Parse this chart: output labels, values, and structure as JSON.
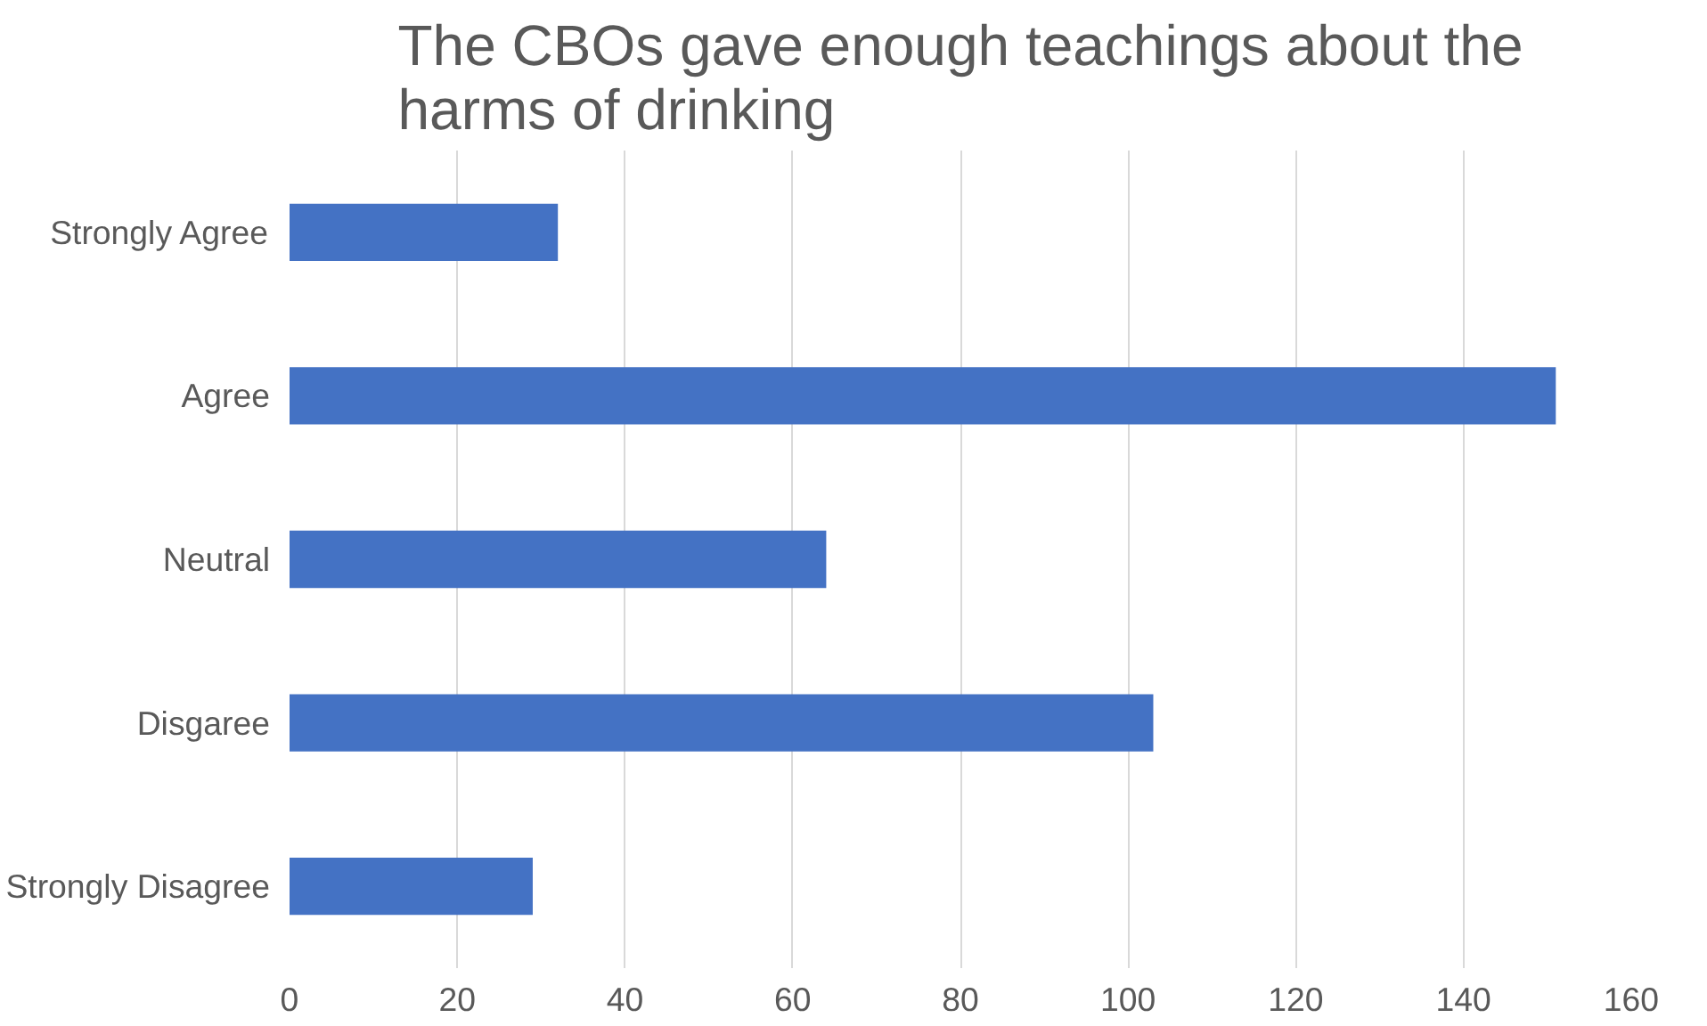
{
  "chart_data": {
    "type": "bar",
    "orientation": "horizontal",
    "title": "The CBOs gave enough teachings about the\nharms of drinking",
    "categories": [
      "Strongly Agree",
      "Agree",
      "Neutral",
      "Disgaree",
      "Strongly Disagree"
    ],
    "values": [
      32,
      151,
      64,
      103,
      29
    ],
    "color": "#4472c4",
    "xlim": [
      0,
      160
    ],
    "xticks": [
      0,
      20,
      40,
      60,
      80,
      100,
      120,
      140,
      160
    ],
    "grid": "x"
  }
}
